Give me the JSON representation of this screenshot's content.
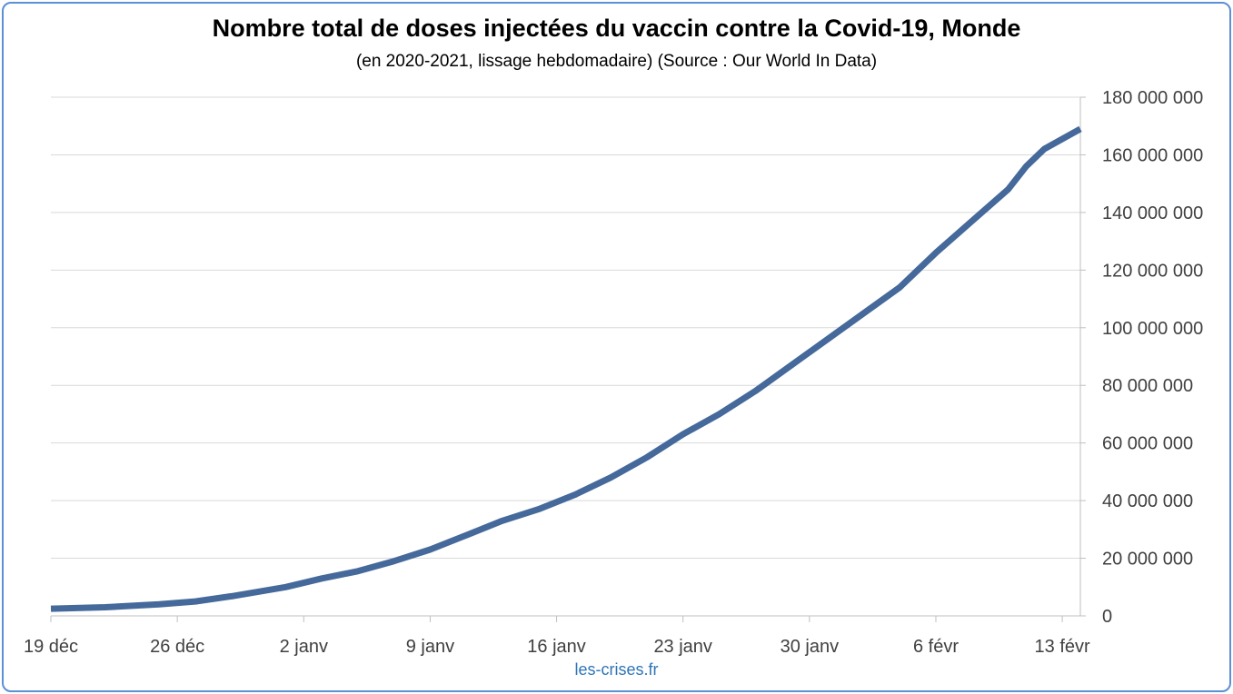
{
  "header": {
    "title": "Nombre total de doses injectées du vaccin contre la Covid-19, Monde",
    "subtitle": "(en 2020-2021, lissage hebdomadaire) (Source : Our World In Data)"
  },
  "footer": {
    "credit": "les-crises.fr"
  },
  "colors": {
    "line": "#44699a",
    "grid": "#d9d9d9",
    "axis": "#bfbfbf",
    "frame": "#5b8fd6",
    "credit": "#2e75b6"
  },
  "chart_data": {
    "type": "line",
    "title": "Nombre total de doses injectées du vaccin contre la Covid-19, Monde",
    "subtitle": "(en 2020-2021, lissage hebdomadaire) (Source : Our World In Data)",
    "xlabel": "",
    "ylabel": "",
    "xlim": [
      "2020-12-19",
      "2021-02-14"
    ],
    "ylim": [
      0,
      180000000
    ],
    "grid": true,
    "y_axis_position": "right",
    "x_ticks": [
      {
        "date": "2020-12-19",
        "label": "19 déc"
      },
      {
        "date": "2020-12-26",
        "label": "26 déc"
      },
      {
        "date": "2021-01-02",
        "label": "2 janv"
      },
      {
        "date": "2021-01-09",
        "label": "9 janv"
      },
      {
        "date": "2021-01-16",
        "label": "16 janv"
      },
      {
        "date": "2021-01-23",
        "label": "23 janv"
      },
      {
        "date": "2021-01-30",
        "label": "30 janv"
      },
      {
        "date": "2021-02-06",
        "label": "6 févr"
      },
      {
        "date": "2021-02-13",
        "label": "13 févr"
      }
    ],
    "y_ticks": [
      {
        "value": 0,
        "label": "0"
      },
      {
        "value": 20000000,
        "label": "20 000 000"
      },
      {
        "value": 40000000,
        "label": "40 000 000"
      },
      {
        "value": 60000000,
        "label": "60 000 000"
      },
      {
        "value": 80000000,
        "label": "80 000 000"
      },
      {
        "value": 100000000,
        "label": "100 000 000"
      },
      {
        "value": 120000000,
        "label": "120 000 000"
      },
      {
        "value": 140000000,
        "label": "140 000 000"
      },
      {
        "value": 160000000,
        "label": "160 000 000"
      },
      {
        "value": 180000000,
        "label": "180 000 000"
      }
    ],
    "series": [
      {
        "points": [
          {
            "x": "2020-12-19",
            "y": 2500000
          },
          {
            "x": "2020-12-22",
            "y": 3000000
          },
          {
            "x": "2020-12-25",
            "y": 4000000
          },
          {
            "x": "2020-12-27",
            "y": 5000000
          },
          {
            "x": "2020-12-29",
            "y": 6800000
          },
          {
            "x": "2021-01-01",
            "y": 10000000
          },
          {
            "x": "2021-01-03",
            "y": 13000000
          },
          {
            "x": "2021-01-05",
            "y": 15500000
          },
          {
            "x": "2021-01-07",
            "y": 19000000
          },
          {
            "x": "2021-01-09",
            "y": 23000000
          },
          {
            "x": "2021-01-11",
            "y": 28000000
          },
          {
            "x": "2021-01-13",
            "y": 33000000
          },
          {
            "x": "2021-01-15",
            "y": 37000000
          },
          {
            "x": "2021-01-17",
            "y": 42000000
          },
          {
            "x": "2021-01-19",
            "y": 48000000
          },
          {
            "x": "2021-01-21",
            "y": 55000000
          },
          {
            "x": "2021-01-23",
            "y": 63000000
          },
          {
            "x": "2021-01-25",
            "y": 70000000
          },
          {
            "x": "2021-01-27",
            "y": 78000000
          },
          {
            "x": "2021-01-29",
            "y": 87000000
          },
          {
            "x": "2021-01-31",
            "y": 96000000
          },
          {
            "x": "2021-02-02",
            "y": 105000000
          },
          {
            "x": "2021-02-04",
            "y": 114000000
          },
          {
            "x": "2021-02-05",
            "y": 120000000
          },
          {
            "x": "2021-02-06",
            "y": 126000000
          },
          {
            "x": "2021-02-08",
            "y": 137000000
          },
          {
            "x": "2021-02-10",
            "y": 148000000
          },
          {
            "x": "2021-02-11",
            "y": 156000000
          },
          {
            "x": "2021-02-12",
            "y": 162000000
          },
          {
            "x": "2021-02-14",
            "y": 169000000
          }
        ]
      }
    ]
  }
}
